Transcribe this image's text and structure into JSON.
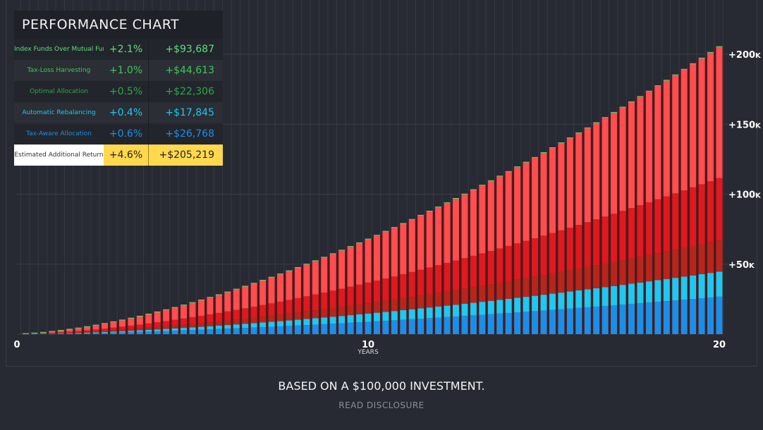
{
  "table": {
    "title": "PERFORMANCE CHART",
    "rows": [
      {
        "label": "Index Funds Over Mutual Funds",
        "pct": "+2.1%",
        "amount": "+$93,687",
        "color": "#5de07a"
      },
      {
        "label": "Tax-Loss Harvesting",
        "pct": "+1.0%",
        "amount": "+$44,613",
        "color": "#3ec956"
      },
      {
        "label": "Optimal Allocation",
        "pct": "+0.5%",
        "amount": "+$22,306",
        "color": "#2aa84a"
      },
      {
        "label": "Automatic Rebalancing",
        "pct": "+0.4%",
        "amount": "+$17,845",
        "color": "#1ec8f0"
      },
      {
        "label": "Tax-Aware Allocation",
        "pct": "+0.6%",
        "amount": "+$26,768",
        "color": "#1a8fe8"
      }
    ],
    "total": {
      "label": "Estimated Additional Return",
      "pct": "+4.6%",
      "amount": "+$205,219",
      "color": "#ffd84d"
    }
  },
  "footer": {
    "note": "BASED ON A $100,000 INVESTMENT.",
    "disclosure_link": "READ DISCLOSURE"
  },
  "chart_data": {
    "type": "bar",
    "stacked": true,
    "xlabel": "YEARS",
    "x_ticks": [
      "0",
      "10",
      "20"
    ],
    "xlim": [
      0,
      20
    ],
    "ylim": [
      0,
      205
    ],
    "y_unit": "thousands of dollars",
    "y_ticks": [
      {
        "value": 50,
        "label": "+50",
        "suffix": "K"
      },
      {
        "value": 100,
        "label": "+100",
        "suffix": "K"
      },
      {
        "value": 150,
        "label": "+150",
        "suffix": "K"
      },
      {
        "value": 200,
        "label": "+200",
        "suffix": "K"
      }
    ],
    "grid": true,
    "bars_per_year": 4,
    "series": [
      {
        "key": "tax-aware-allocation",
        "color": "#1a8fe8",
        "values": [
          0.02,
          0.07,
          0.14,
          0.22,
          0.32,
          0.43,
          0.54,
          0.67,
          0.81,
          0.96,
          1.12,
          1.28,
          1.46,
          1.64,
          1.84,
          2.04,
          2.24,
          2.46,
          2.68,
          2.92,
          3.15,
          3.4,
          3.64,
          3.9,
          4.16,
          4.43,
          4.71,
          4.99,
          5.28,
          5.57,
          5.87,
          6.18,
          6.49,
          6.81,
          7.13,
          7.46,
          7.79,
          8.14,
          8.48,
          8.83,
          9.19,
          9.55,
          9.91,
          10.28,
          10.66,
          11.05,
          11.43,
          11.82,
          12.22,
          12.62,
          13.03,
          13.43,
          13.85,
          14.27,
          14.7,
          15.13,
          15.56,
          16.0,
          16.44,
          16.89,
          17.35,
          17.8,
          18.26,
          18.73,
          19.2,
          19.68,
          20.16,
          20.64,
          21.13,
          21.62,
          22.12,
          22.62,
          23.12,
          23.63,
          24.14,
          24.65,
          25.18,
          25.7,
          26.23,
          26.77
        ]
      },
      {
        "key": "automatic-rebalancing",
        "color": "#1ec8f0",
        "values": [
          0.02,
          0.05,
          0.09,
          0.15,
          0.21,
          0.28,
          0.36,
          0.45,
          0.54,
          0.64,
          0.75,
          0.86,
          0.98,
          1.1,
          1.22,
          1.36,
          1.5,
          1.64,
          1.79,
          1.94,
          2.1,
          2.26,
          2.43,
          2.6,
          2.78,
          2.96,
          3.14,
          3.33,
          3.52,
          3.72,
          3.92,
          4.12,
          4.33,
          4.54,
          4.76,
          4.98,
          5.2,
          5.42,
          5.66,
          5.89,
          6.12,
          6.37,
          6.61,
          6.86,
          7.11,
          7.36,
          7.62,
          7.88,
          8.14,
          8.41,
          8.68,
          8.96,
          9.24,
          9.52,
          9.8,
          10.08,
          10.38,
          10.66,
          10.96,
          11.26,
          11.56,
          11.87,
          12.18,
          12.49,
          12.8,
          13.12,
          13.44,
          13.76,
          14.08,
          14.41,
          14.74,
          15.08,
          15.42,
          15.76,
          16.09,
          16.44,
          16.78,
          17.14,
          17.49,
          17.85
        ]
      },
      {
        "key": "optimal-allocation",
        "color": "#b8251c",
        "values": [
          0.02,
          0.06,
          0.12,
          0.19,
          0.27,
          0.36,
          0.45,
          0.56,
          0.68,
          0.8,
          0.94,
          1.07,
          1.22,
          1.37,
          1.53,
          1.7,
          1.87,
          2.05,
          2.24,
          2.43,
          2.63,
          2.83,
          3.04,
          3.25,
          3.47,
          3.7,
          3.93,
          4.16,
          4.4,
          4.65,
          4.9,
          5.15,
          5.41,
          5.68,
          5.95,
          6.22,
          6.5,
          6.78,
          7.07,
          7.36,
          7.66,
          7.96,
          8.26,
          8.57,
          8.89,
          9.21,
          9.53,
          9.85,
          10.18,
          10.52,
          10.86,
          11.2,
          11.55,
          11.9,
          12.25,
          12.61,
          12.97,
          13.33,
          13.7,
          14.08,
          14.46,
          14.84,
          15.22,
          15.61,
          16.0,
          16.4,
          16.8,
          17.2,
          17.61,
          18.02,
          18.43,
          18.85,
          19.27,
          19.7,
          20.12,
          20.55,
          20.98,
          21.42,
          21.86,
          22.31
        ]
      },
      {
        "key": "tax-loss-harvesting",
        "color": "#e0181f",
        "values": [
          0.04,
          0.12,
          0.23,
          0.37,
          0.53,
          0.71,
          0.9,
          1.12,
          1.35,
          1.6,
          1.87,
          2.14,
          2.44,
          2.74,
          3.06,
          3.4,
          3.74,
          4.1,
          4.47,
          4.86,
          5.25,
          5.66,
          6.07,
          6.5,
          6.94,
          7.39,
          7.85,
          8.32,
          8.8,
          9.29,
          9.79,
          10.3,
          10.82,
          11.35,
          11.89,
          12.44,
          12.99,
          13.56,
          14.14,
          14.72,
          15.31,
          15.92,
          16.52,
          17.14,
          17.77,
          18.41,
          19.05,
          19.7,
          20.36,
          21.03,
          21.71,
          22.39,
          23.09,
          23.79,
          24.5,
          25.21,
          25.94,
          26.66,
          27.4,
          28.15,
          28.91,
          29.67,
          30.44,
          31.22,
          32.0,
          32.8,
          33.6,
          34.4,
          35.21,
          36.03,
          36.86,
          37.7,
          38.54,
          39.39,
          40.23,
          41.09,
          41.96,
          42.84,
          43.72,
          44.61
        ]
      },
      {
        "key": "index-funds-over-mutual-funds",
        "color": "#ff4d50",
        "values": [
          0.08,
          0.25,
          0.48,
          0.78,
          1.11,
          1.49,
          1.89,
          2.35,
          2.84,
          3.36,
          3.93,
          4.49,
          5.12,
          5.75,
          6.43,
          7.14,
          7.85,
          8.61,
          9.39,
          10.21,
          11.03,
          11.89,
          12.75,
          13.65,
          14.57,
          15.52,
          16.49,
          17.47,
          18.48,
          19.51,
          20.56,
          21.63,
          22.72,
          23.84,
          24.97,
          26.12,
          27.28,
          28.48,
          29.69,
          30.91,
          32.15,
          33.43,
          34.69,
          35.99,
          37.32,
          38.66,
          40.01,
          41.37,
          42.76,
          44.16,
          45.59,
          47.02,
          48.49,
          49.96,
          51.45,
          52.94,
          54.47,
          55.99,
          57.54,
          59.12,
          60.71,
          62.31,
          63.92,
          65.56,
          67.2,
          68.88,
          70.56,
          72.24,
          73.94,
          75.66,
          77.41,
          79.17,
          80.93,
          82.72,
          84.48,
          86.29,
          88.12,
          89.96,
          91.81,
          93.69
        ]
      }
    ],
    "colors": {
      "background": "#272a33",
      "grid": "#3a3d46",
      "shadow": "#4a1c1c",
      "cap": "#5de07a"
    }
  }
}
